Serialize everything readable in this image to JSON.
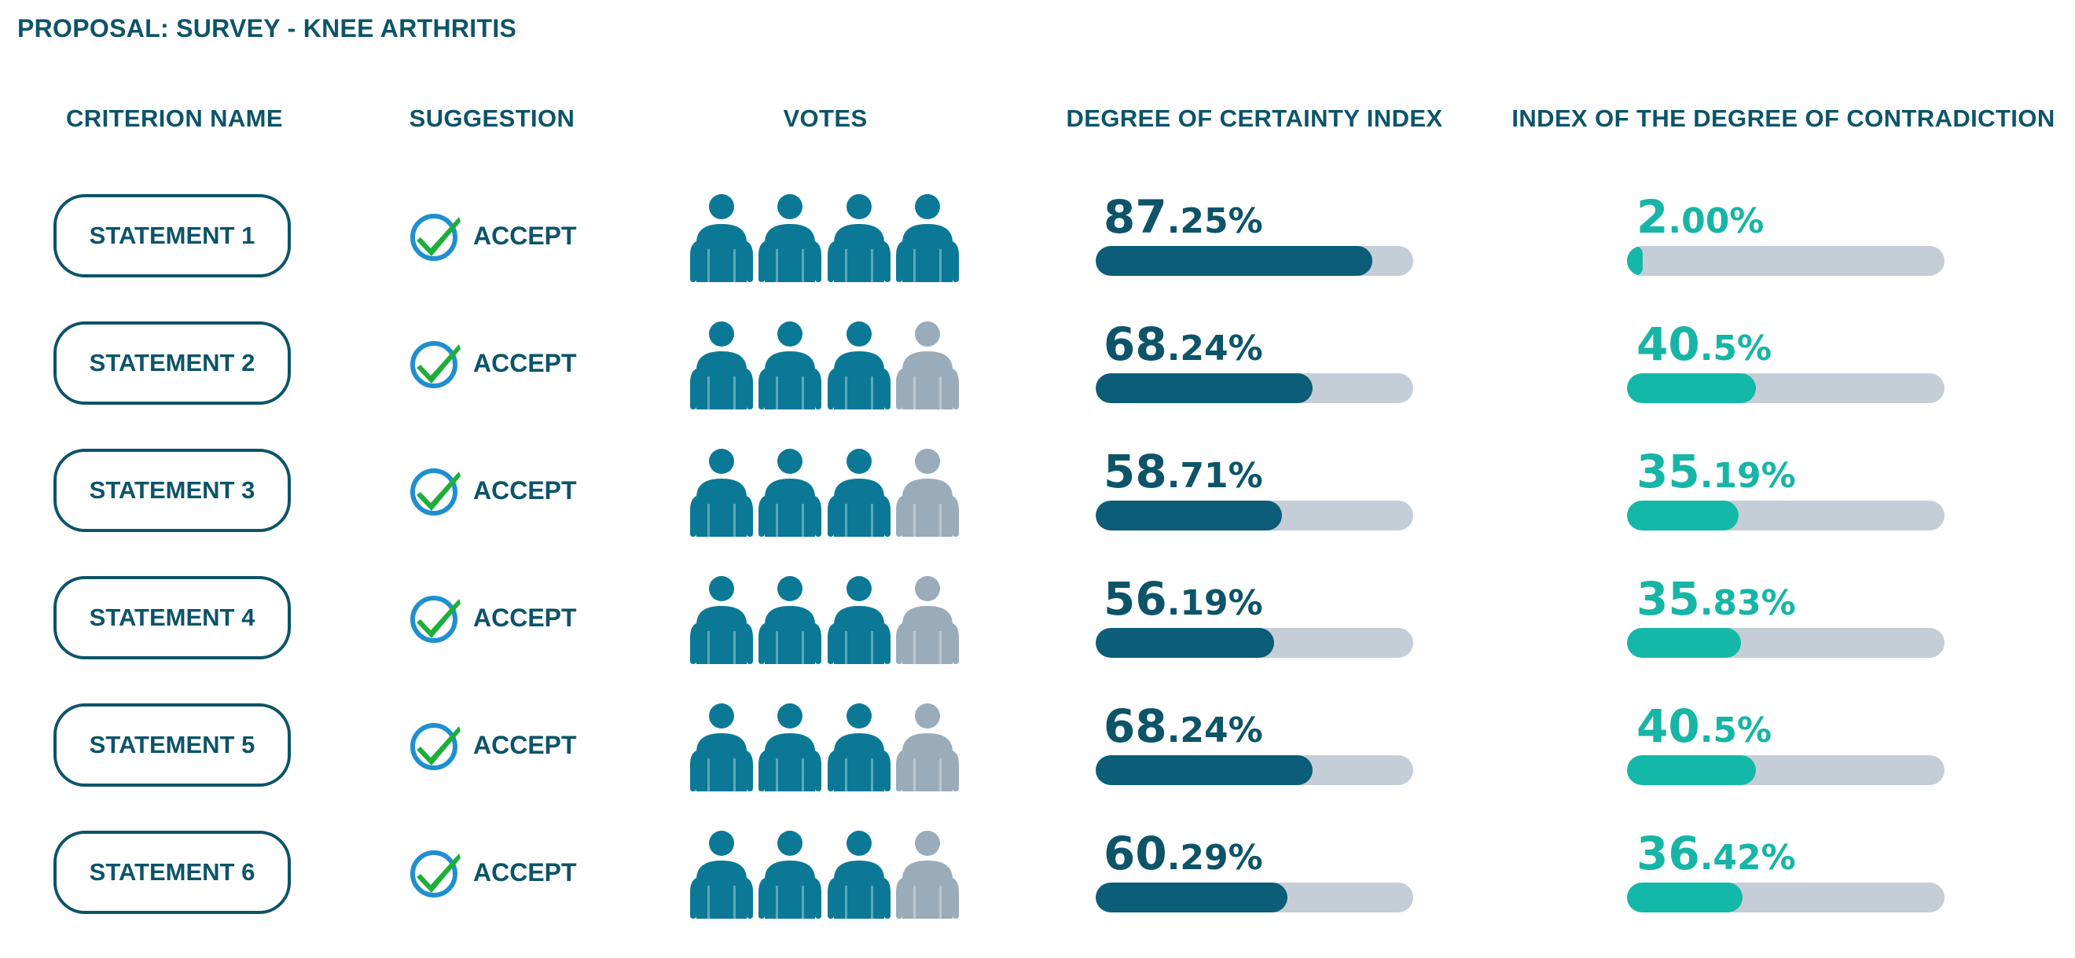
{
  "title": "PROPOSAL: SURVEY - KNEE ARTHRITIS",
  "headers": {
    "criterion": "CRITERION NAME",
    "suggestion": "SUGGESTION",
    "votes": "VOTES",
    "certainty": "DEGREE OF CERTAINTY INDEX",
    "contradiction": "INDEX OF THE DEGREE OF CONTRADICTION"
  },
  "colors": {
    "vote_active": "#0b7996",
    "vote_inactive": "#9aabb9",
    "certainty_bar": "#0b5d78",
    "contradiction_bar": "#14b8a8",
    "track": "#c5ced6",
    "check_ring": "#1f8fd0",
    "check_mark": "#1fae3a"
  },
  "icons": {
    "suggestion": "check-circle-icon",
    "vote": "person-icon"
  },
  "rows": [
    {
      "name": "STATEMENT 1",
      "suggestion": "ACCEPT",
      "votes_total": 4,
      "votes_for": 4,
      "certainty": {
        "int": "87",
        "dec": ".25%",
        "value": 87.25
      },
      "contradiction": {
        "int": "2",
        "dec": ".00%",
        "value": 2.0
      }
    },
    {
      "name": "STATEMENT 2",
      "suggestion": "ACCEPT",
      "votes_total": 4,
      "votes_for": 3,
      "certainty": {
        "int": "68",
        "dec": ".24%",
        "value": 68.24
      },
      "contradiction": {
        "int": "40",
        "dec": ".5%",
        "value": 40.5
      }
    },
    {
      "name": "STATEMENT 3",
      "suggestion": "ACCEPT",
      "votes_total": 4,
      "votes_for": 3,
      "certainty": {
        "int": "58",
        "dec": ".71%",
        "value": 58.71
      },
      "contradiction": {
        "int": "35",
        "dec": ".19%",
        "value": 35.19
      }
    },
    {
      "name": "STATEMENT 4",
      "suggestion": "ACCEPT",
      "votes_total": 4,
      "votes_for": 3,
      "certainty": {
        "int": "56",
        "dec": ".19%",
        "value": 56.19
      },
      "contradiction": {
        "int": "35",
        "dec": ".83%",
        "value": 35.83
      }
    },
    {
      "name": "STATEMENT 5",
      "suggestion": "ACCEPT",
      "votes_total": 4,
      "votes_for": 3,
      "certainty": {
        "int": "68",
        "dec": ".24%",
        "value": 68.24
      },
      "contradiction": {
        "int": "40",
        "dec": ".5%",
        "value": 40.5
      }
    },
    {
      "name": "STATEMENT 6",
      "suggestion": "ACCEPT",
      "votes_total": 4,
      "votes_for": 3,
      "certainty": {
        "int": "60",
        "dec": ".29%",
        "value": 60.29
      },
      "contradiction": {
        "int": "36",
        "dec": ".42%",
        "value": 36.42
      }
    }
  ]
}
